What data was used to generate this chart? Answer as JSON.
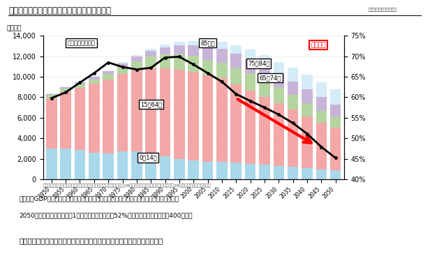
{
  "years": [
    1950,
    1955,
    1960,
    1965,
    1970,
    1975,
    1980,
    1985,
    1990,
    1995,
    2000,
    2005,
    2010,
    2015,
    2020,
    2025,
    2030,
    2035,
    2040,
    2045,
    2050
  ],
  "age_0_14": [
    2979,
    3012,
    2843,
    2553,
    2515,
    2722,
    2751,
    2603,
    2249,
    2000,
    1847,
    1730,
    1680,
    1595,
    1503,
    1407,
    1321,
    1204,
    1073,
    963,
    875
  ],
  "age_15_64": [
    4930,
    5471,
    6047,
    6744,
    7212,
    7581,
    7883,
    8251,
    8590,
    8716,
    8622,
    8441,
    8174,
    7629,
    7175,
    6635,
    6073,
    5588,
    5075,
    4529,
    4155
  ],
  "age_65_74": [
    293,
    339,
    391,
    455,
    530,
    660,
    890,
    1148,
    1343,
    1480,
    1560,
    1460,
    1517,
    1613,
    1688,
    1718,
    1611,
    1417,
    1246,
    1206,
    1113
  ],
  "age_75_84": [
    135,
    165,
    193,
    230,
    280,
    355,
    450,
    555,
    700,
    870,
    1040,
    1230,
    1339,
    1407,
    1372,
    1265,
    1244,
    1310,
    1390,
    1301,
    1143
  ],
  "age_85plus": [
    35,
    45,
    55,
    70,
    90,
    115,
    155,
    200,
    270,
    350,
    440,
    555,
    680,
    800,
    950,
    1070,
    1205,
    1340,
    1430,
    1450,
    1490
  ],
  "working_rate": [
    0.598,
    0.612,
    0.636,
    0.659,
    0.685,
    0.674,
    0.668,
    0.672,
    0.697,
    0.699,
    0.68,
    0.659,
    0.638,
    0.608,
    0.591,
    0.575,
    0.558,
    0.537,
    0.511,
    0.479,
    0.452
  ],
  "color_0_14": "#a8d8ea",
  "color_15_64": "#f4a7a7",
  "color_65_74": "#b5d5a0",
  "color_75_84": "#c8b4d8",
  "color_85plus": "#d4ecf7"
}
